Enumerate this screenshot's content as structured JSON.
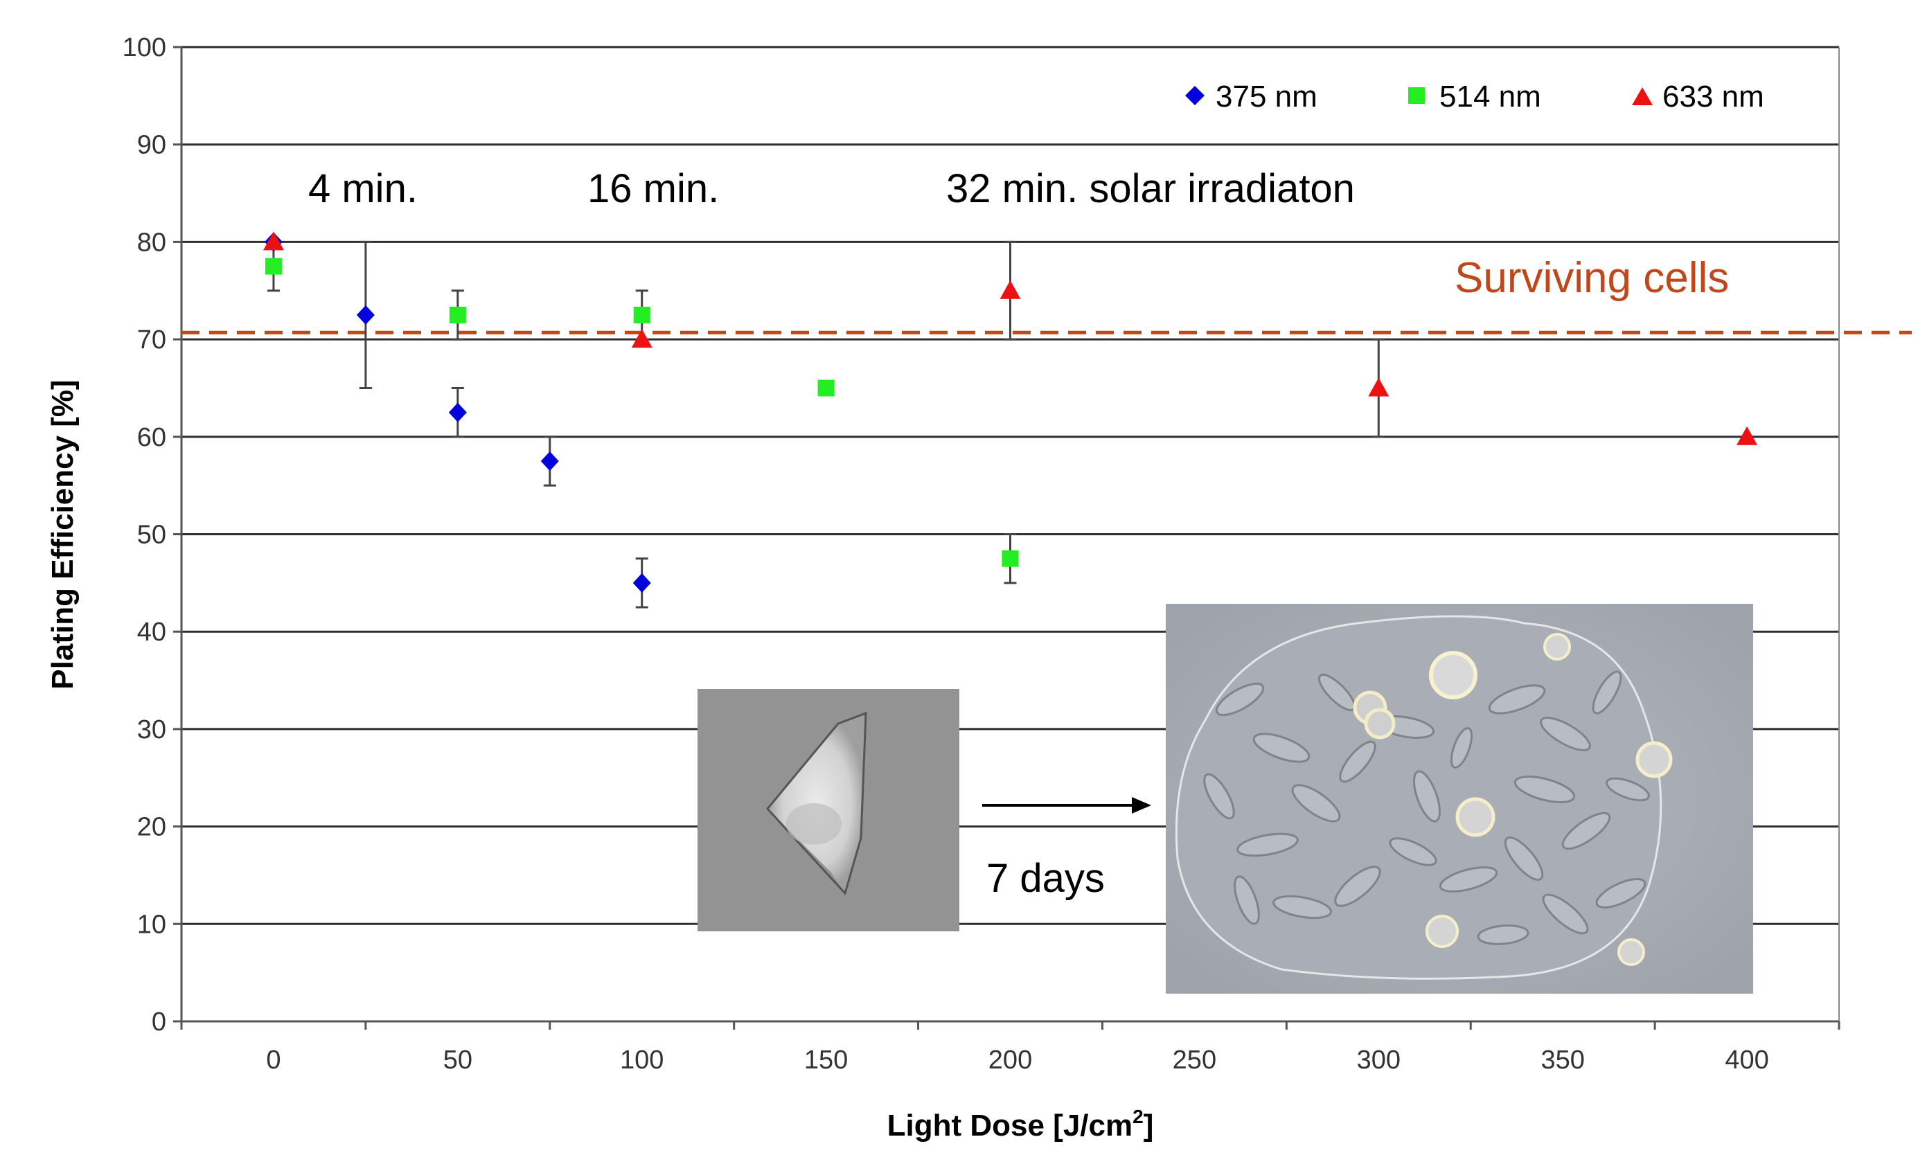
{
  "chart_data": {
    "type": "scatter",
    "title": "",
    "xlabel": "Light Dose [J/cm",
    "xlabel_sup": "2",
    "xlabel_end": "]",
    "ylabel": "Plating Efficiency [%]",
    "xlim": [
      -25,
      425
    ],
    "ylim": [
      0,
      100
    ],
    "x_ticks": [
      0,
      50,
      100,
      150,
      200,
      250,
      300,
      350,
      400
    ],
    "y_ticks": [
      0,
      10,
      20,
      30,
      40,
      50,
      60,
      70,
      80,
      90,
      100
    ],
    "grid": true,
    "legend_position": "top-right",
    "series": [
      {
        "name": "375 nm",
        "color": "#0000dd",
        "marker": "diamond",
        "points": [
          {
            "x": 0,
            "y": 80,
            "err": [
              80,
              80
            ]
          },
          {
            "x": 25,
            "y": 72.5,
            "err": [
              65,
              80
            ]
          },
          {
            "x": 50,
            "y": 62.5,
            "err": [
              60,
              65
            ]
          },
          {
            "x": 75,
            "y": 57.5,
            "err": [
              55,
              60
            ]
          },
          {
            "x": 100,
            "y": 45,
            "err": [
              42.5,
              47.5
            ]
          }
        ]
      },
      {
        "name": "514 nm",
        "color": "#22ee22",
        "marker": "square",
        "points": [
          {
            "x": 0,
            "y": 77.5,
            "err": [
              75,
              80
            ]
          },
          {
            "x": 50,
            "y": 72.5,
            "err": [
              70,
              75
            ]
          },
          {
            "x": 100,
            "y": 72.5,
            "err": [
              70,
              75
            ]
          },
          {
            "x": 150,
            "y": 65,
            "err": [
              65,
              65
            ]
          },
          {
            "x": 200,
            "y": 47.5,
            "err": [
              45,
              50
            ]
          }
        ]
      },
      {
        "name": "633 nm",
        "color": "#ee1111",
        "marker": "triangle",
        "points": [
          {
            "x": 0,
            "y": 80,
            "err": [
              80,
              80
            ]
          },
          {
            "x": 100,
            "y": 70,
            "err": [
              70,
              70
            ]
          },
          {
            "x": 200,
            "y": 75,
            "err": [
              70,
              80
            ]
          },
          {
            "x": 300,
            "y": 65,
            "err": [
              60,
              70
            ]
          },
          {
            "x": 400,
            "y": 60,
            "err": [
              60,
              60
            ]
          }
        ]
      }
    ],
    "reference_line": {
      "y": 70.7,
      "label": "Surviving cells",
      "color": "#c0471a",
      "style": "dashed"
    },
    "annotations": [
      {
        "text": "4 min.",
        "x": 27,
        "y": 85
      },
      {
        "text": "16 min.",
        "x": 105,
        "y": 85
      },
      {
        "text": "32 min. solar irradiaton",
        "x": 244,
        "y": 85
      },
      {
        "text": "7 days",
        "x": 212,
        "y": 14
      }
    ]
  },
  "insets": [
    {
      "name": "single-cell-micrograph",
      "description_label": "single cell"
    },
    {
      "name": "colony-micrograph",
      "description_label": "colony"
    }
  ]
}
